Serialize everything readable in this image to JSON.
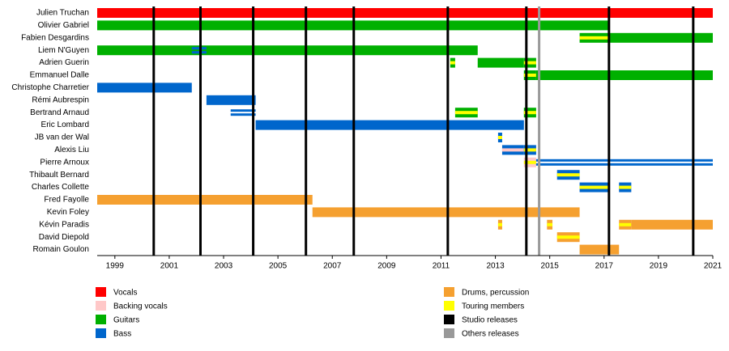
{
  "chart_data": {
    "type": "timeline",
    "members": [
      "Julien Truchan",
      "Olivier Gabriel",
      "Fabien Desgardins",
      "Liem N'Guyen",
      "Adrien Guerin",
      "Emmanuel Dalle",
      "Christophe Charretier",
      "Rémi Aubrespin",
      "Bertrand Arnaud",
      "Eric Lombard",
      "JB van der Wal",
      "Alexis Liu",
      "Pierre Arnoux",
      "Thibault Bernard",
      "Charles Collette",
      "Fred Fayolle",
      "Kevin Foley",
      "Kévin Paradis",
      "David Diepold",
      "Romain Goulon"
    ],
    "legend": [
      {
        "name": "Vocals",
        "color": "#ff0000"
      },
      {
        "name": "Backing vocals",
        "color": "#ffc8c8"
      },
      {
        "name": "Guitars",
        "color": "#00b000"
      },
      {
        "name": "Bass",
        "color": "#0066cc"
      },
      {
        "name": "Drums, percussion",
        "color": "#f5a030"
      },
      {
        "name": "Touring members",
        "color": "#ffff00"
      },
      {
        "name": "Studio releases",
        "color": "#000000"
      },
      {
        "name": "Others releases",
        "color": "#999999"
      }
    ],
    "bars": [
      {
        "member": 0,
        "role": 0,
        "start": 1998.35,
        "end": 2021
      },
      {
        "member": 1,
        "role": 2,
        "start": 1998.35,
        "end": 2017.2
      },
      {
        "member": 2,
        "role": 2,
        "start": 2016.1,
        "end": 2017.2,
        "stripe": 5
      },
      {
        "member": 2,
        "role": 2,
        "start": 2017.2,
        "end": 2021
      },
      {
        "member": 3,
        "role": 2,
        "start": 1998.35,
        "end": 2012.35
      },
      {
        "member": 3,
        "role": 3,
        "start": 2001.83,
        "end": 2002.37,
        "hollow": true
      },
      {
        "member": 4,
        "role": 2,
        "start": 2011.34,
        "end": 2011.52,
        "stripe": 5
      },
      {
        "member": 4,
        "role": 2,
        "start": 2012.35,
        "end": 2014.05
      },
      {
        "member": 4,
        "role": 2,
        "start": 2014.05,
        "end": 2014.5,
        "stripe": 5
      },
      {
        "member": 5,
        "role": 2,
        "start": 2014.05,
        "end": 2014.5,
        "stripe": 5
      },
      {
        "member": 5,
        "role": 2,
        "start": 2014.5,
        "end": 2021
      },
      {
        "member": 6,
        "role": 3,
        "start": 1998.35,
        "end": 2001.83
      },
      {
        "member": 7,
        "role": 3,
        "start": 2002.37,
        "end": 2004.18
      },
      {
        "member": 8,
        "role": 3,
        "start": 2003.26,
        "end": 2004.18,
        "hollow": true
      },
      {
        "member": 8,
        "role": 2,
        "start": 2011.52,
        "end": 2012.35,
        "stripe": 5
      },
      {
        "member": 8,
        "role": 2,
        "start": 2014.05,
        "end": 2014.5,
        "stripe": 5
      },
      {
        "member": 9,
        "role": 3,
        "start": 2004.18,
        "end": 2014.05
      },
      {
        "member": 10,
        "role": 3,
        "start": 2013.1,
        "end": 2013.25,
        "stripe": 5
      },
      {
        "member": 11,
        "role": 3,
        "start": 2013.25,
        "end": 2014.05,
        "stripe": 1
      },
      {
        "member": 11,
        "role": 3,
        "start": 2014.05,
        "end": 2014.5,
        "stripe": 5
      },
      {
        "member": 12,
        "role": 1,
        "start": 2014.05,
        "end": 2014.5,
        "stripe": 5
      },
      {
        "member": 12,
        "role": 3,
        "start": 2014.5,
        "end": 2021,
        "hollow": true
      },
      {
        "member": 13,
        "role": 3,
        "start": 2015.27,
        "end": 2016.1,
        "stripe": 5
      },
      {
        "member": 14,
        "role": 3,
        "start": 2016.1,
        "end": 2017.2,
        "stripe": 5
      },
      {
        "member": 14,
        "role": 3,
        "start": 2017.55,
        "end": 2018.0,
        "stripe": 5
      },
      {
        "member": 15,
        "role": 4,
        "start": 1998.35,
        "end": 2006.27
      },
      {
        "member": 16,
        "role": 4,
        "start": 2006.27,
        "end": 2016.1
      },
      {
        "member": 17,
        "role": 4,
        "start": 2013.1,
        "end": 2013.25,
        "stripe": 5
      },
      {
        "member": 17,
        "role": 4,
        "start": 2014.9,
        "end": 2015.1,
        "stripe": 5
      },
      {
        "member": 17,
        "role": 4,
        "start": 2017.55,
        "end": 2018.0,
        "stripe": 5
      },
      {
        "member": 17,
        "role": 4,
        "start": 2018.0,
        "end": 2021
      },
      {
        "member": 18,
        "role": 4,
        "start": 2015.27,
        "end": 2016.1,
        "stripe": 5
      },
      {
        "member": 19,
        "role": 4,
        "start": 2016.1,
        "end": 2017.55
      }
    ],
    "releases": [
      {
        "year": 2000.43,
        "kind": 6
      },
      {
        "year": 2002.15,
        "kind": 6
      },
      {
        "year": 2004.09,
        "kind": 6
      },
      {
        "year": 2006.03,
        "kind": 6
      },
      {
        "year": 2007.79,
        "kind": 6
      },
      {
        "year": 2011.25,
        "kind": 6
      },
      {
        "year": 2014.14,
        "kind": 6
      },
      {
        "year": 2017.18,
        "kind": 6
      },
      {
        "year": 2020.28,
        "kind": 6
      },
      {
        "year": 2014.61,
        "kind": 7
      }
    ],
    "xlim": [
      1998.35,
      2021
    ],
    "xticks": [
      1999,
      2001,
      2003,
      2005,
      2007,
      2009,
      2011,
      2013,
      2015,
      2017,
      2019,
      2021
    ]
  }
}
